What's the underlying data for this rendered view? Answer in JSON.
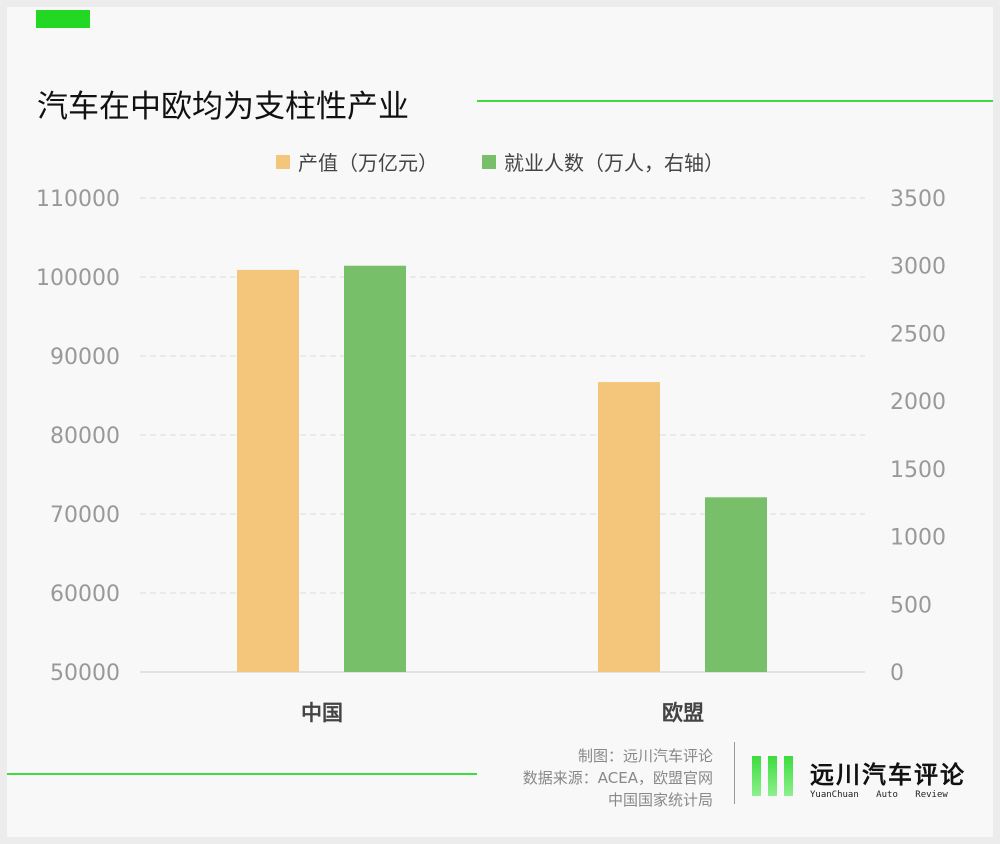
{
  "title": "汽车在中欧均为支柱性产业",
  "chart_data": {
    "type": "bar",
    "categories": [
      "中国",
      "欧盟"
    ],
    "series": [
      {
        "name": "产值（万亿元）",
        "axis": "left",
        "color": "#f4c67b",
        "values": [
          100900,
          86700
        ]
      },
      {
        "name": "就业人数（万人，右轴）",
        "axis": "right",
        "color": "#78bf69",
        "values": [
          3000,
          1290
        ]
      }
    ],
    "left_axis": {
      "ylim": [
        50000,
        110000
      ],
      "ticks": [
        "50000",
        "60000",
        "70000",
        "80000",
        "90000",
        "100000",
        "110000"
      ]
    },
    "right_axis": {
      "ylim": [
        0,
        3500
      ],
      "ticks": [
        "0",
        "500",
        "1000",
        "1500",
        "2000",
        "2500",
        "3000",
        "3500"
      ]
    },
    "grid": true,
    "legend": "top"
  },
  "footer": {
    "credit": "制图：远川汽车评论",
    "source_line1": "数据来源：ACEA，欧盟官网",
    "source_line2": "中国国家统计局",
    "logo_cn": "远川汽车评论",
    "logo_en": "YuanChuan Auto Review"
  }
}
